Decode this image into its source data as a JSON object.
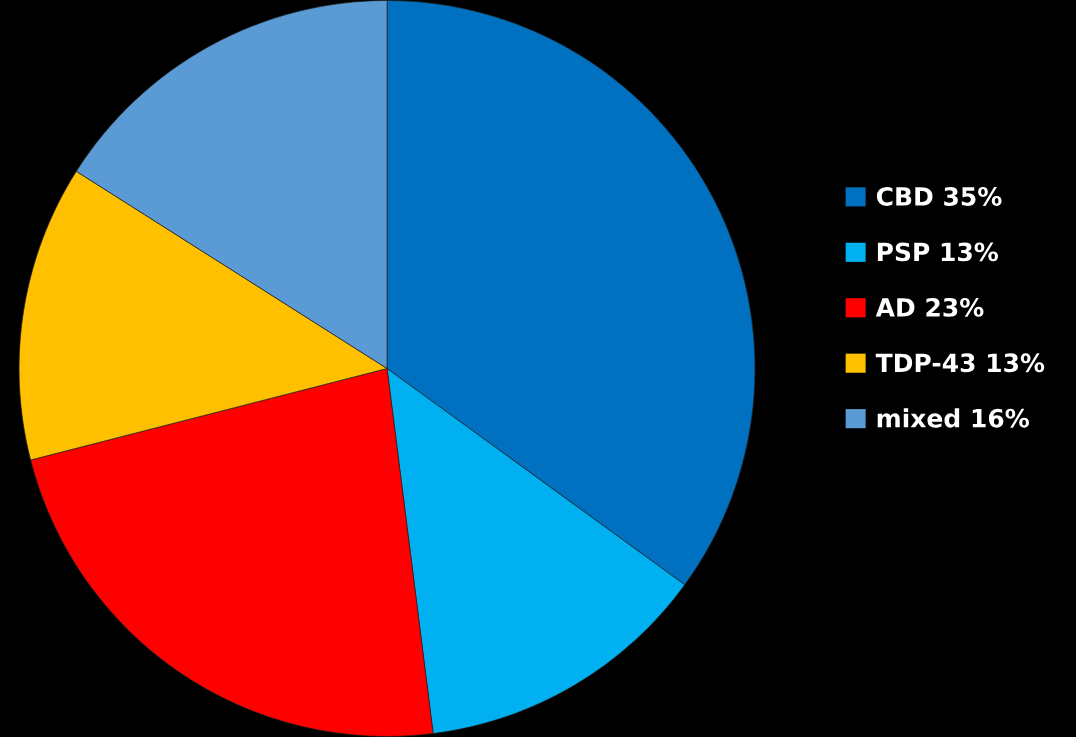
{
  "chart_data": {
    "type": "pie",
    "categories": [
      "CBD 35%",
      "PSP 13%",
      "AD 23%",
      "TDP-43 13%",
      "mixed 16%"
    ],
    "values": [
      35,
      13,
      23,
      13,
      16
    ],
    "colors": [
      "#0070c0",
      "#00b0f0",
      "#ff0000",
      "#ffc000",
      "#5b9bd5"
    ],
    "legend": "right"
  }
}
